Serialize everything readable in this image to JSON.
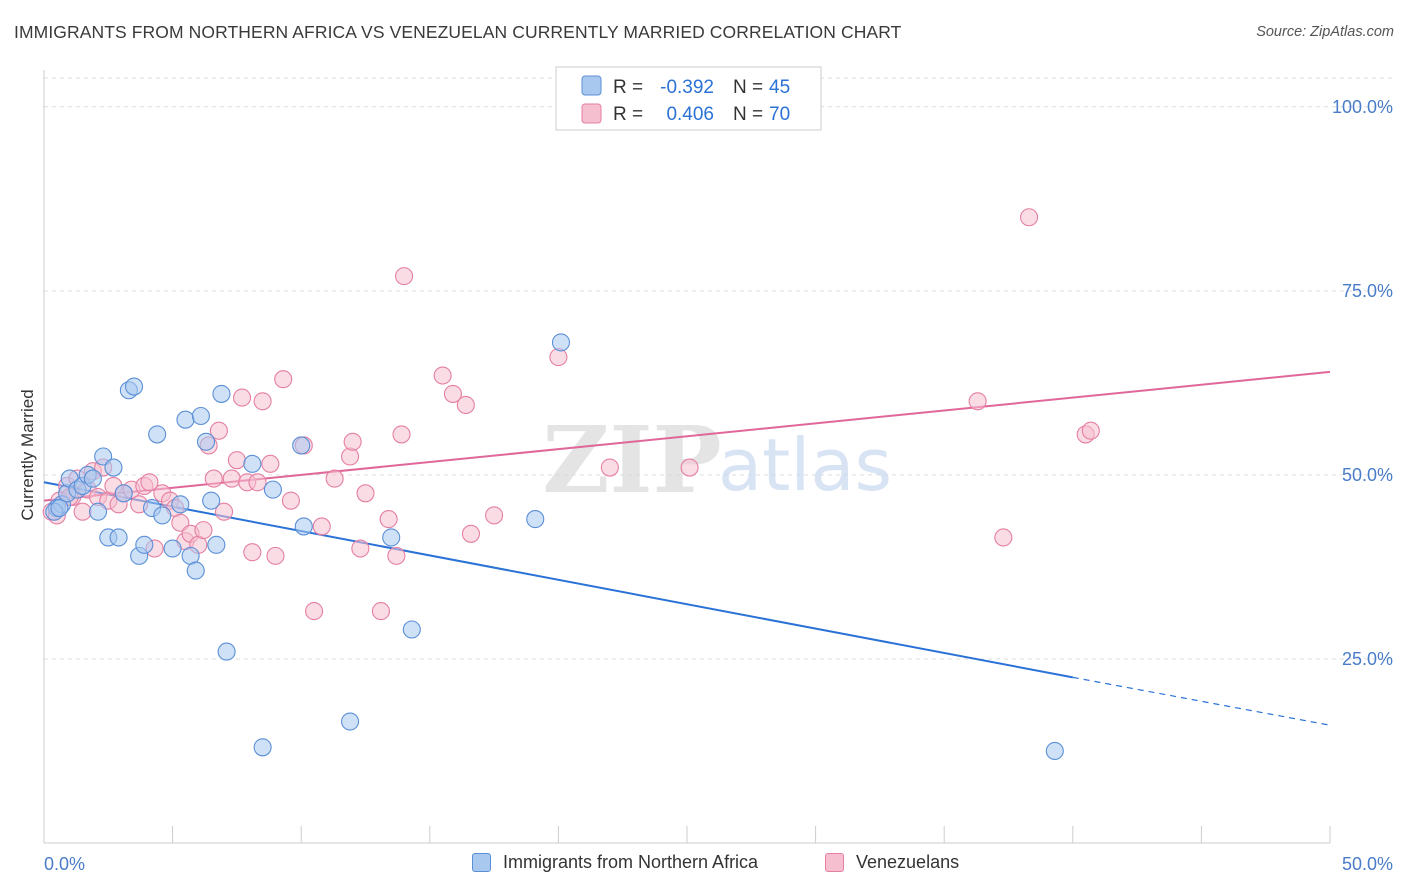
{
  "title": "IMMIGRANTS FROM NORTHERN AFRICA VS VENEZUELAN CURRENTLY MARRIED CORRELATION CHART",
  "source": "Source: ZipAtlas.com",
  "watermark": {
    "zip": "ZIP",
    "atlas": "atlas"
  },
  "legend_top": [
    {
      "r_label": "R =",
      "r_value": "-0.392",
      "n_label": "N =",
      "n_value": "45"
    },
    {
      "r_label": "R =",
      "r_value": "0.406",
      "n_label": "N =",
      "n_value": "70"
    }
  ],
  "legend_bottom": [
    {
      "label": "Immigrants from Northern Africa"
    },
    {
      "label": "Venezuelans"
    }
  ],
  "colors": {
    "blue_fill": "#a8c8f0",
    "blue_stroke": "#5b8fd6",
    "blue_line": "#2a72d6",
    "pink_fill": "#f5bfd0",
    "pink_stroke": "#e57fa2",
    "pink_line": "#e0679a",
    "tick_label": "#4a7cc9",
    "grid": "#dddddd"
  },
  "chart_data": {
    "type": "scatter",
    "title": "IMMIGRANTS FROM NORTHERN AFRICA VS VENEZUELAN CURRENTLY MARRIED CORRELATION CHART",
    "xlabel": "",
    "ylabel": "Currently Married",
    "xlim": [
      0,
      50
    ],
    "ylim": [
      0,
      105
    ],
    "x_tick_labels": [
      "0.0%",
      "50.0%"
    ],
    "y_ticks": [
      25,
      50,
      75,
      100
    ],
    "y_tick_labels": [
      "25.0%",
      "50.0%",
      "75.0%",
      "100.0%"
    ],
    "grid": true,
    "legend_position": "top-center",
    "series": [
      {
        "name": "Immigrants from Northern Africa",
        "color": "blue",
        "points": [
          [
            0.5,
            45.5
          ],
          [
            0.7,
            46.0
          ],
          [
            0.9,
            47.5
          ],
          [
            1.0,
            49.5
          ],
          [
            1.3,
            48.0
          ],
          [
            1.5,
            48.5
          ],
          [
            1.7,
            50.0
          ],
          [
            1.9,
            49.5
          ],
          [
            2.1,
            45.0
          ],
          [
            2.3,
            52.5
          ],
          [
            2.5,
            41.5
          ],
          [
            2.7,
            51.0
          ],
          [
            2.9,
            41.5
          ],
          [
            3.1,
            47.5
          ],
          [
            3.3,
            61.5
          ],
          [
            3.5,
            62.0
          ],
          [
            3.7,
            39.0
          ],
          [
            3.9,
            40.5
          ],
          [
            4.2,
            45.5
          ],
          [
            4.4,
            55.5
          ],
          [
            4.6,
            44.5
          ],
          [
            5.0,
            40.0
          ],
          [
            5.3,
            46.0
          ],
          [
            5.5,
            57.5
          ],
          [
            5.7,
            39.0
          ],
          [
            5.9,
            37.0
          ],
          [
            6.1,
            58.0
          ],
          [
            6.3,
            54.5
          ],
          [
            6.5,
            46.5
          ],
          [
            6.7,
            40.5
          ],
          [
            6.9,
            61.0
          ],
          [
            7.1,
            26.0
          ],
          [
            8.1,
            51.5
          ],
          [
            8.5,
            13.0
          ],
          [
            8.9,
            48.0
          ],
          [
            10.0,
            54.0
          ],
          [
            10.1,
            43.0
          ],
          [
            11.9,
            16.5
          ],
          [
            13.5,
            41.5
          ],
          [
            14.3,
            29.0
          ],
          [
            19.1,
            44.0
          ],
          [
            20.1,
            68.0
          ],
          [
            39.3,
            12.5
          ],
          [
            0.4,
            45.0
          ],
          [
            0.6,
            45.5
          ]
        ],
        "trend": {
          "x_start": 0,
          "y_start": 49.0,
          "x_end": 40.0,
          "y_end": 22.5,
          "x_dash_end": 50,
          "y_dash_end": 16.0
        }
      },
      {
        "name": "Venezuelans",
        "color": "pink",
        "points": [
          [
            0.3,
            45.0
          ],
          [
            0.6,
            46.5
          ],
          [
            0.9,
            48.5
          ],
          [
            1.1,
            47.0
          ],
          [
            1.3,
            49.5
          ],
          [
            1.5,
            45.0
          ],
          [
            1.7,
            48.0
          ],
          [
            1.9,
            50.5
          ],
          [
            2.1,
            47.0
          ],
          [
            2.3,
            51.0
          ],
          [
            2.5,
            46.5
          ],
          [
            2.7,
            48.5
          ],
          [
            2.9,
            46.0
          ],
          [
            3.1,
            47.5
          ],
          [
            3.4,
            48.0
          ],
          [
            3.7,
            46.0
          ],
          [
            3.9,
            48.5
          ],
          [
            4.1,
            49.0
          ],
          [
            4.3,
            40.0
          ],
          [
            4.6,
            47.5
          ],
          [
            4.9,
            46.5
          ],
          [
            5.1,
            45.5
          ],
          [
            5.3,
            43.5
          ],
          [
            5.5,
            41.0
          ],
          [
            5.7,
            42.0
          ],
          [
            6.0,
            40.5
          ],
          [
            6.2,
            42.5
          ],
          [
            6.4,
            54.0
          ],
          [
            6.6,
            49.5
          ],
          [
            6.8,
            56.0
          ],
          [
            7.0,
            45.0
          ],
          [
            7.3,
            49.5
          ],
          [
            7.5,
            52.0
          ],
          [
            7.7,
            60.5
          ],
          [
            7.9,
            49.0
          ],
          [
            8.1,
            39.5
          ],
          [
            8.3,
            49.0
          ],
          [
            8.5,
            60.0
          ],
          [
            8.8,
            51.5
          ],
          [
            9.0,
            39.0
          ],
          [
            9.3,
            63.0
          ],
          [
            9.6,
            46.5
          ],
          [
            10.1,
            54.0
          ],
          [
            10.5,
            31.5
          ],
          [
            10.8,
            43.0
          ],
          [
            11.3,
            49.5
          ],
          [
            11.9,
            52.5
          ],
          [
            12.0,
            54.5
          ],
          [
            12.3,
            40.0
          ],
          [
            12.5,
            47.5
          ],
          [
            13.1,
            31.5
          ],
          [
            13.4,
            44.0
          ],
          [
            13.7,
            39.0
          ],
          [
            13.9,
            55.5
          ],
          [
            14.0,
            77.0
          ],
          [
            15.5,
            63.5
          ],
          [
            15.9,
            61.0
          ],
          [
            16.4,
            59.5
          ],
          [
            16.6,
            42.0
          ],
          [
            17.5,
            44.5
          ],
          [
            20.0,
            66.0
          ],
          [
            22.0,
            51.0
          ],
          [
            25.1,
            51.0
          ],
          [
            36.3,
            60.0
          ],
          [
            37.3,
            41.5
          ],
          [
            38.3,
            85.0
          ],
          [
            40.5,
            55.5
          ],
          [
            40.7,
            56.0
          ],
          [
            0.5,
            44.5
          ],
          [
            1.0,
            47.0
          ]
        ],
        "trend": {
          "x_start": 0,
          "y_start": 46.5,
          "x_end": 50,
          "y_end": 64.0
        }
      }
    ]
  }
}
